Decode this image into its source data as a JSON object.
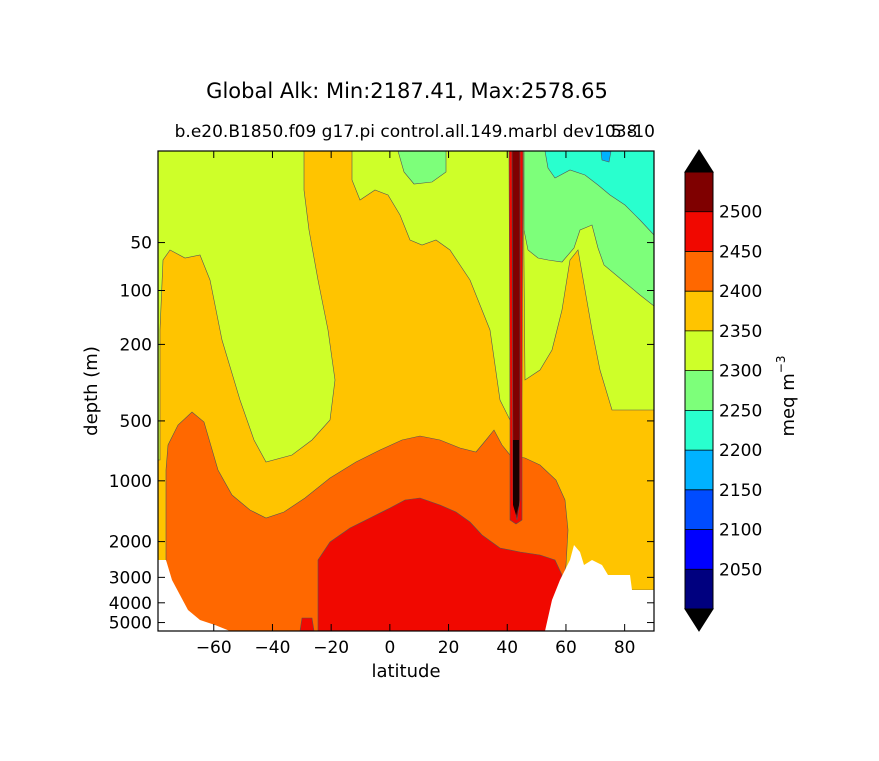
{
  "chart_data": {
    "type": "heatmap",
    "title": "Global Alk: Min:2187.41, Max:2578.65",
    "subtitle": "b.e20.B1850.f09 g17.pi control.all.149.marbl dev1038",
    "subtitle_overlap": "5 -10",
    "xlabel": "latitude",
    "ylabel": "depth (m)",
    "xlim": [
      -79,
      90
    ],
    "ylim_depth": [
      5,
      5500
    ],
    "y_scale": "log-like depth",
    "x_ticks": [
      "−60",
      "−40",
      "−20",
      "0",
      "20",
      "40",
      "60",
      "80"
    ],
    "x_tick_values": [
      -60,
      -40,
      -20,
      0,
      20,
      40,
      60,
      80
    ],
    "y_ticks": [
      "50",
      "100",
      "200",
      "500",
      "1000",
      "2000",
      "3000",
      "4000",
      "5000"
    ],
    "y_tick_values": [
      50,
      100,
      200,
      500,
      1000,
      2000,
      3000,
      4000,
      5000
    ],
    "colorbar": {
      "label": "meq m",
      "label_exponent": "−3",
      "tick_labels": [
        "2050",
        "2100",
        "2150",
        "2200",
        "2250",
        "2300",
        "2350",
        "2400",
        "2450",
        "2500"
      ],
      "levels": [
        2000,
        2050,
        2100,
        2150,
        2200,
        2250,
        2300,
        2350,
        2400,
        2450,
        2500,
        2550
      ],
      "colors": [
        "#00007f",
        "#0000ff",
        "#004cff",
        "#00b2ff",
        "#29ffce",
        "#7dff7a",
        "#ceff29",
        "#ffc400",
        "#ff6800",
        "#f10800",
        "#7f0000"
      ],
      "extend": "both"
    },
    "regions": [
      {
        "band": "2300-2350",
        "description": "surface layer and upper southern ocean"
      },
      {
        "band": "2350-2400",
        "description": "intermediate depths"
      },
      {
        "band": "2400-2450",
        "description": "deep southern and north atlantic waters"
      },
      {
        "band": "2450-2500",
        "description": "deep tropical and northern basins"
      },
      {
        "band": "2250-2300",
        "description": "arctic upper ocean"
      },
      {
        "band": "2200-2250",
        "description": "arctic surface"
      },
      {
        "band": "2500-2550",
        "description": "narrow column near 43N (Mediterranean)"
      }
    ]
  }
}
